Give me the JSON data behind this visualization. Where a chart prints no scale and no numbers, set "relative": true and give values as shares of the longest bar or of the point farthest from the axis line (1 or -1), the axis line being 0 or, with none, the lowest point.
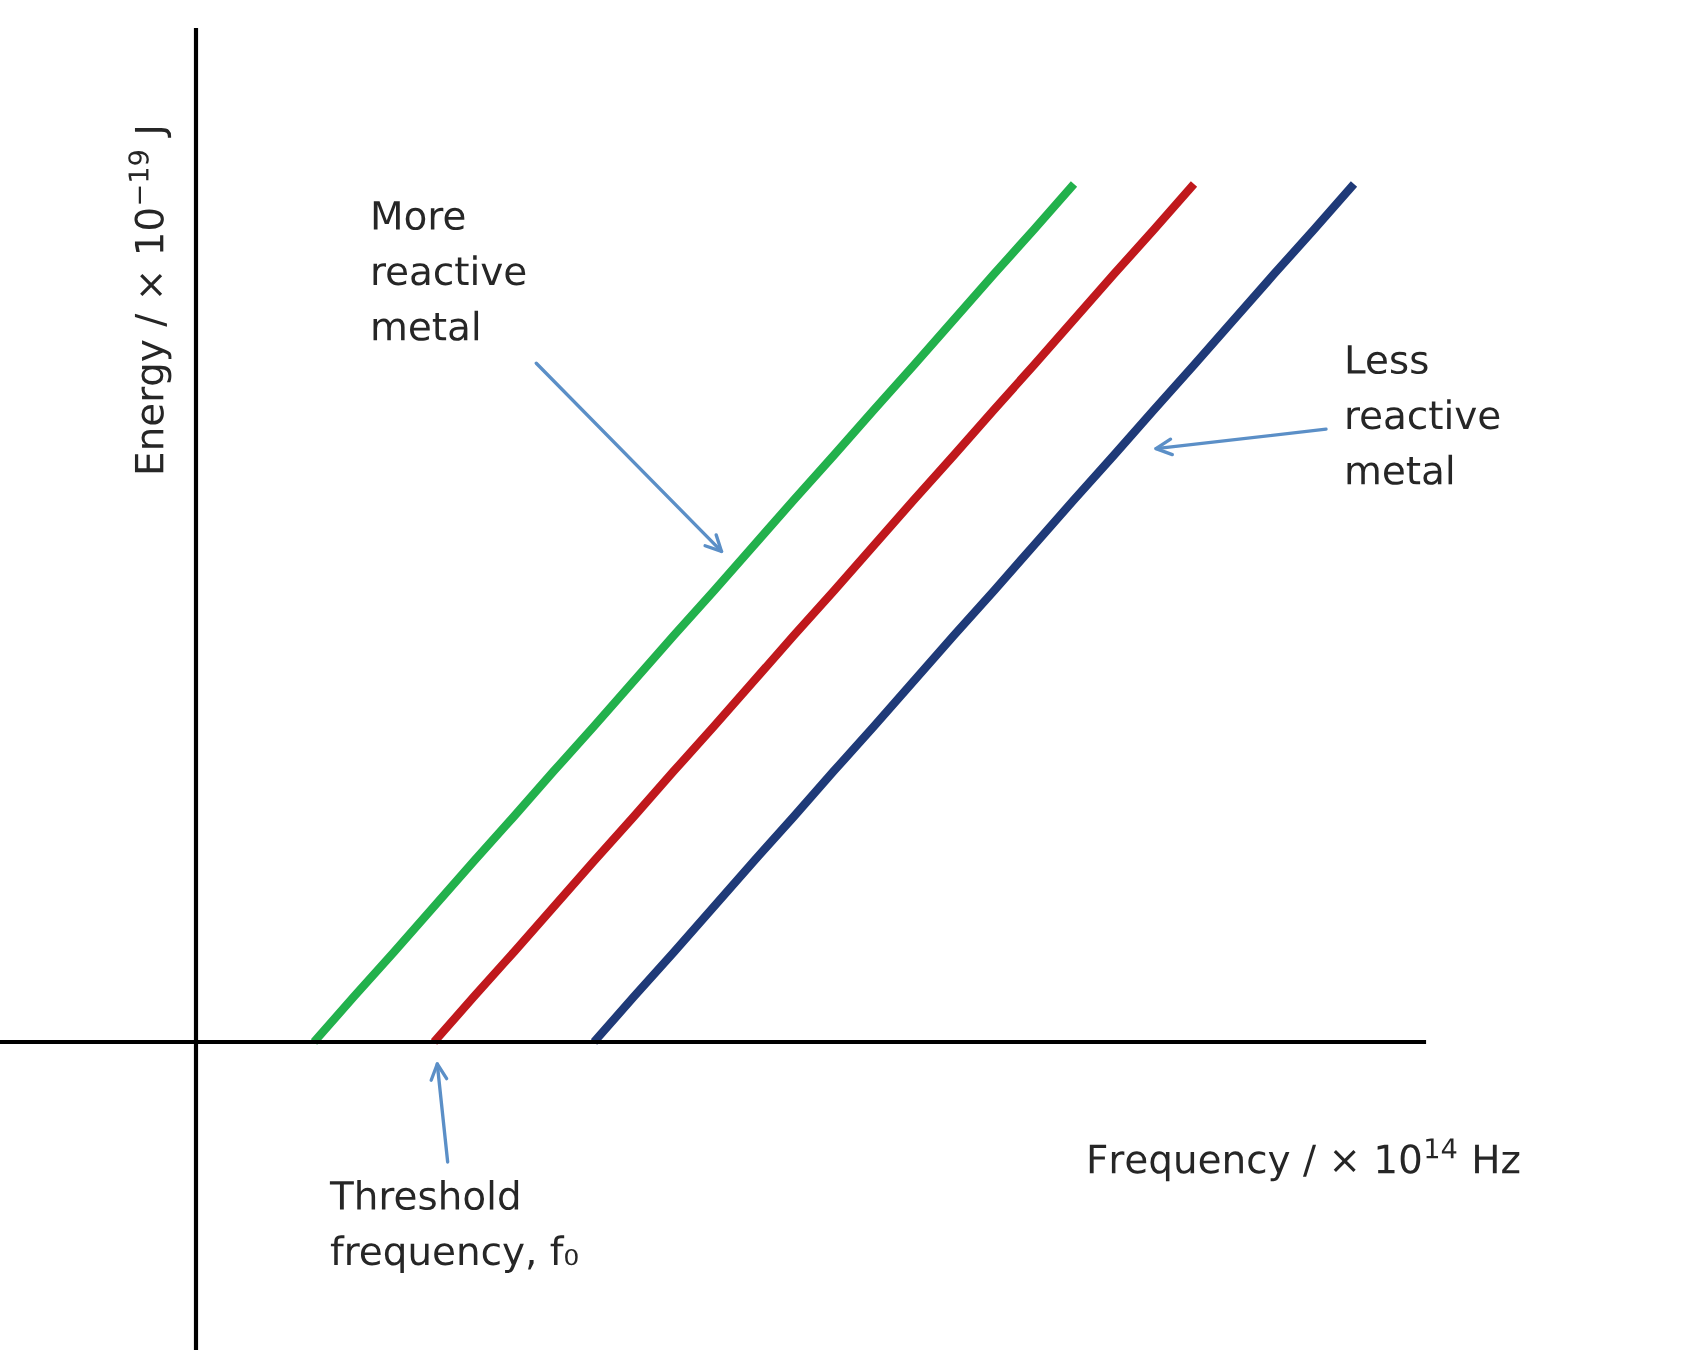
{
  "chart_data": {
    "type": "line",
    "relative": true,
    "xlabel": "Frequency / × 10$^{14}$ Hz",
    "ylabel": "Energy / × 10$^{−19}$ J",
    "marker": "none",
    "line_style": "solid",
    "categories": [
      null,
      null,
      null,
      null,
      null,
      null,
      null,
      null,
      null,
      null,
      null,
      null,
      null,
      null,
      null,
      null,
      null,
      null,
      null,
      null,
      null,
      null,
      null,
      null,
      null,
      null,
      null
    ],
    "series": [
      {
        "color": "#22b14c",
        "values": [
          0,
          0.053,
          0.105,
          0.158,
          0.211,
          0.263,
          0.316,
          0.368,
          0.421,
          0.474,
          0.526,
          0.579,
          0.632,
          0.684,
          0.737,
          0.789,
          0.842,
          0.895,
          0.947,
          1,
          null,
          null,
          null,
          null,
          null,
          null,
          null
        ]
      },
      {
        "color": "#c0181c",
        "values": [
          null,
          null,
          null,
          0,
          0.053,
          0.105,
          0.158,
          0.211,
          0.263,
          0.316,
          0.368,
          0.421,
          0.474,
          0.526,
          0.579,
          0.632,
          0.684,
          0.737,
          0.789,
          0.842,
          0.895,
          0.947,
          1,
          null,
          null,
          null,
          null
        ]
      },
      {
        "color": "#1f3a78",
        "values": [
          null,
          null,
          null,
          null,
          null,
          null,
          null,
          0,
          0.053,
          0.105,
          0.158,
          0.211,
          0.263,
          0.316,
          0.368,
          0.421,
          0.474,
          0.526,
          0.579,
          0.632,
          0.684,
          0.737,
          0.789,
          0.842,
          0.895,
          0.947,
          1
        ]
      }
    ],
    "annotations": [
      "More\nreactive\nmetal",
      "Less\nreactive\nmetal",
      "Threshold\nfrequency, f₀"
    ]
  }
}
